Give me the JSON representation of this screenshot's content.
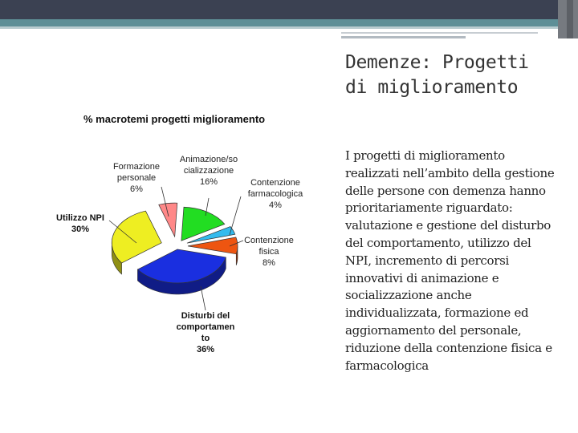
{
  "slide": {
    "title_line1": "Demenze: Progetti",
    "title_line2": "di miglioramento",
    "body": "I progetti di miglioramento realizzati nell’ambito della gestione delle persone con demenza hanno prioritariamente riguardato: valutazione e gestione del disturbo del comportamento, utilizzo del NPI, incremento di percorsi innovativi di animazione e socializzazione anche individualizzata, formazione ed aggiornamento del personale, riduzione della contenzione fisica e farmacologica"
  },
  "chart_data": {
    "type": "pie",
    "style": "3d-exploded",
    "title": "% macrotemi progetti miglioramento",
    "slices": [
      {
        "label": [
          "Animazione/so",
          "cializzazione"
        ],
        "value": 16,
        "display": "16%",
        "color": "#22dd22"
      },
      {
        "label": [
          "Contenzione",
          "farmacologica"
        ],
        "value": 4,
        "display": "4%",
        "color": "#33bbee"
      },
      {
        "label": [
          "Contenzione",
          "fisica"
        ],
        "value": 8,
        "display": "8%",
        "color": "#ee5511"
      },
      {
        "label": [
          "Disturbi del",
          "comportamen",
          "to"
        ],
        "value": 36,
        "display": "36%",
        "color": "#1a2fe0"
      },
      {
        "label": [
          "Utilizzo NPI"
        ],
        "value": 30,
        "display": "30%",
        "color": "#eeee22"
      },
      {
        "label": [
          "Formazione",
          "personale"
        ],
        "value": 6,
        "display": "6%",
        "color": "#ff8888"
      }
    ]
  }
}
